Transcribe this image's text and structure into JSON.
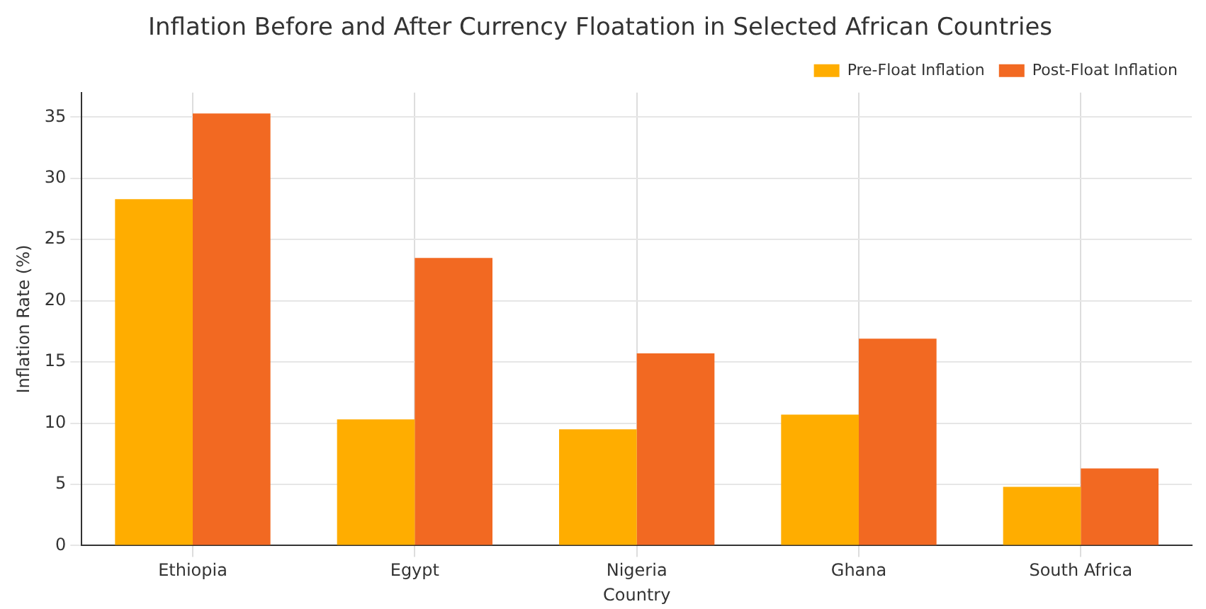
{
  "chart_data": {
    "type": "bar",
    "title": "Inflation Before and After Currency Floatation in Selected African Countries",
    "xlabel": "Country",
    "ylabel": "Inflation Rate (%)",
    "categories": [
      "Ethiopia",
      "Egypt",
      "Nigeria",
      "Ghana",
      "South Africa"
    ],
    "series": [
      {
        "name": "Pre-Float Inflation",
        "color": "#ffad00",
        "values": [
          28.3,
          10.3,
          9.5,
          10.7,
          4.8
        ]
      },
      {
        "name": "Post-Float Inflation",
        "color": "#f26922",
        "values": [
          35.3,
          23.5,
          15.7,
          16.9,
          6.3
        ]
      }
    ],
    "ylim": [
      0,
      37
    ],
    "yticks": [
      0,
      5,
      10,
      15,
      20,
      25,
      30,
      35
    ],
    "grid": true,
    "legend": "top right"
  }
}
